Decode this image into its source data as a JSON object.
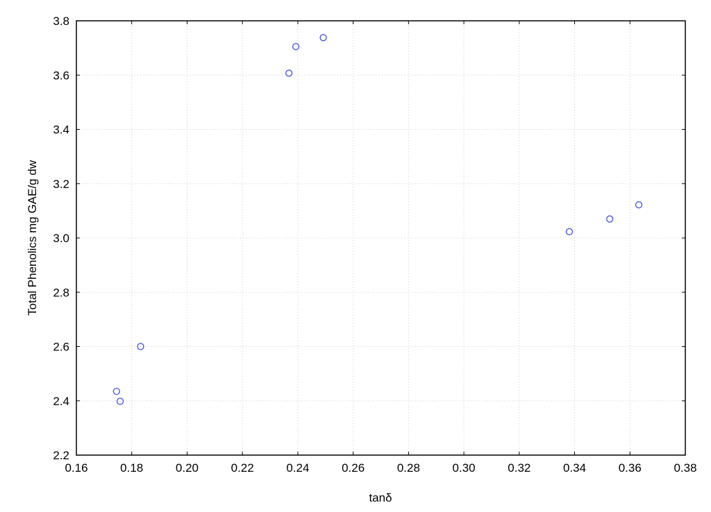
{
  "chart_data": {
    "type": "scatter",
    "title": "",
    "xlabel": "tanδ",
    "ylabel": "Total Phenolics mg GAE/g dw",
    "xlim": [
      0.16,
      0.38
    ],
    "ylim": [
      2.2,
      3.8
    ],
    "x_ticks": [
      "0.16",
      "0.18",
      "0.20",
      "0.22",
      "0.24",
      "0.26",
      "0.28",
      "0.30",
      "0.32",
      "0.34",
      "0.36",
      "0.38"
    ],
    "y_ticks": [
      "2.2",
      "2.4",
      "2.6",
      "2.8",
      "3.0",
      "3.2",
      "3.4",
      "3.6",
      "3.8"
    ],
    "grid": true,
    "marker": "open-circle",
    "series": [
      {
        "color": "#3340e0",
        "points": [
          {
            "x": 0.1745,
            "y": 2.435
          },
          {
            "x": 0.1758,
            "y": 2.398
          },
          {
            "x": 0.1832,
            "y": 2.6
          },
          {
            "x": 0.2368,
            "y": 3.607
          },
          {
            "x": 0.2393,
            "y": 3.705
          },
          {
            "x": 0.2492,
            "y": 3.738
          },
          {
            "x": 0.3381,
            "y": 3.023
          },
          {
            "x": 0.3527,
            "y": 3.07
          },
          {
            "x": 0.3632,
            "y": 3.122
          }
        ]
      }
    ]
  }
}
